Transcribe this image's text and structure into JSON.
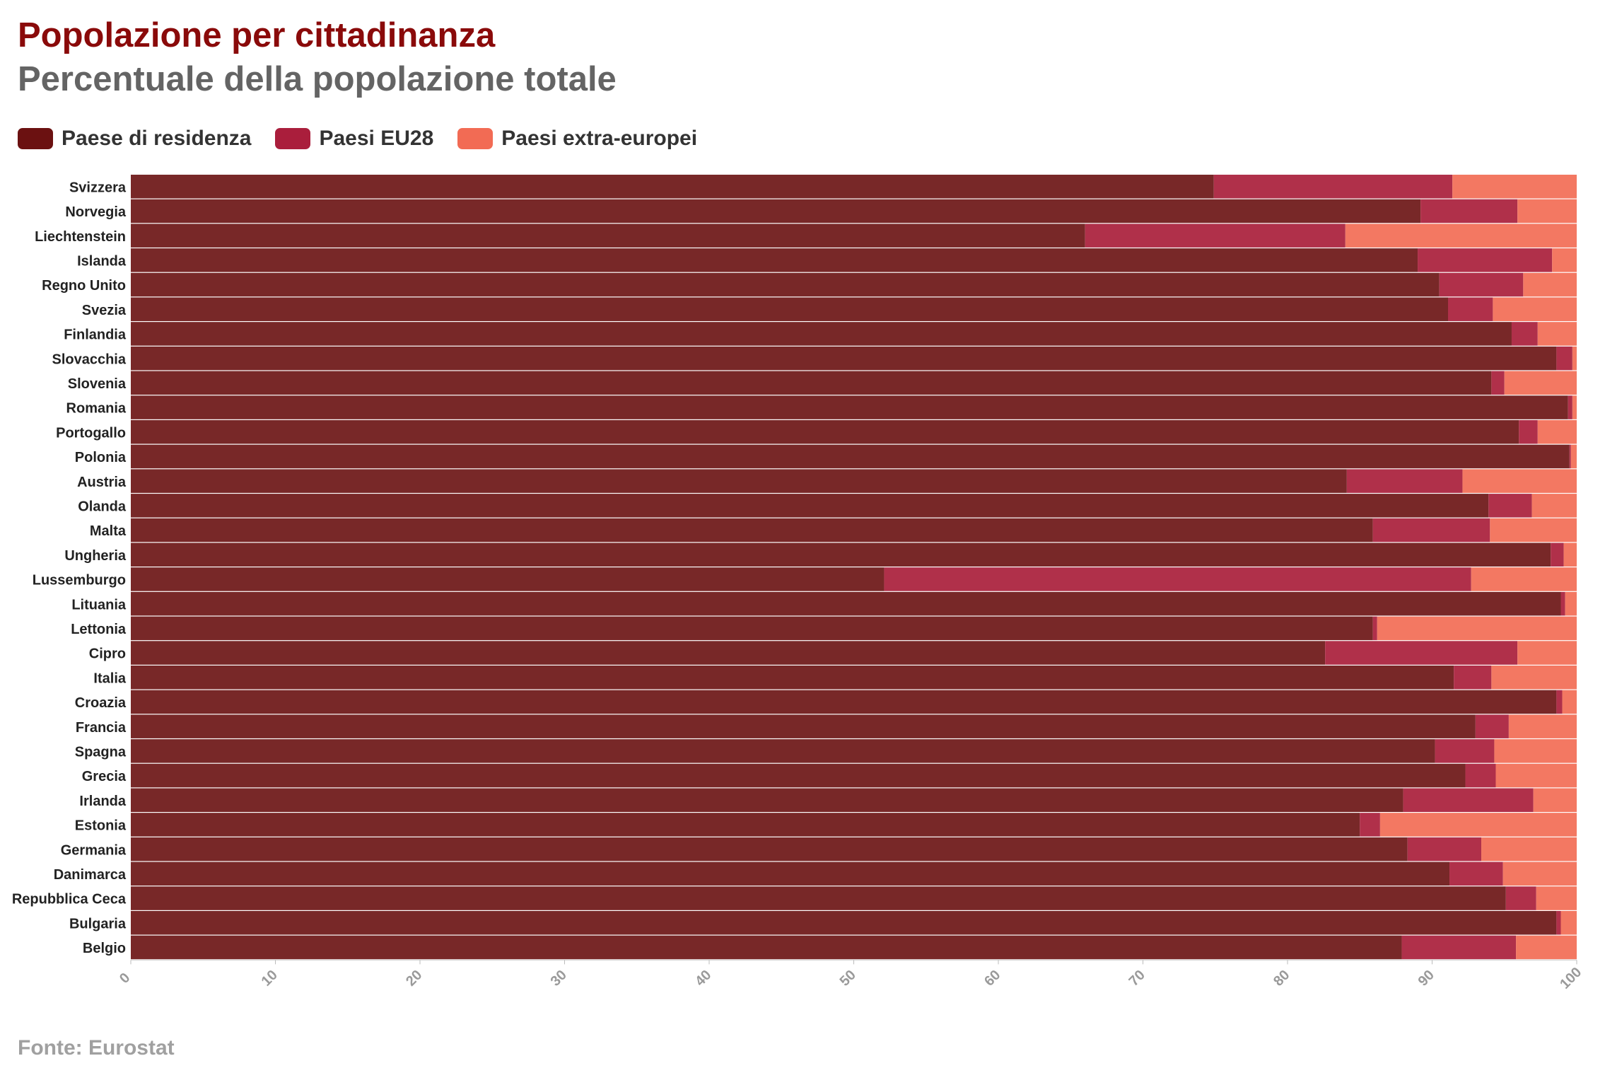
{
  "colors": {
    "title": "#8a0a0a",
    "subtitle": "#646464",
    "resid": "#782828",
    "eu": "#b0304a",
    "extra": "#f37862",
    "resid_swatch": "#6b1111",
    "eu_swatch": "#aa1e3c",
    "extra_swatch": "#f26b54"
  },
  "legend": [
    {
      "label": "Paese di residenza",
      "color": "#6b1111"
    },
    {
      "label": "Paesi EU28",
      "color": "#aa1e3c"
    },
    {
      "label": "Paesi extra-europei",
      "color": "#f26b54"
    }
  ],
  "source": "Fonte: Eurostat",
  "chart_data": {
    "type": "bar",
    "orientation": "horizontal",
    "stacked": true,
    "title": "Popolazione per cittadinanza",
    "subtitle": "Percentuale della popolazione totale",
    "xlim": [
      0,
      100
    ],
    "x_ticks": [
      "0",
      "10",
      "20",
      "30",
      "40",
      "50",
      "60",
      "70",
      "80",
      "90",
      "100"
    ],
    "legend_position": "top-left",
    "grid": false,
    "categories": [
      "Svizzera",
      "Norvegia",
      "Liechtenstein",
      "Islanda",
      "Regno Unito",
      "Svezia",
      "Finlandia",
      "Slovacchia",
      "Slovenia",
      "Romania",
      "Portogallo",
      "Polonia",
      "Austria",
      "Olanda",
      "Malta",
      "Ungheria",
      "Lussemburgo",
      "Lituania",
      "Lettonia",
      "Cipro",
      "Italia",
      "Croazia",
      "Francia",
      "Spagna",
      "Grecia",
      "Irlanda",
      "Estonia",
      "Germania",
      "Danimarca",
      "Repubblica Ceca",
      "Bulgaria",
      "Belgio"
    ],
    "series": [
      {
        "name": "Paese di residenza",
        "values": [
          74.9,
          89.2,
          66.0,
          89.0,
          90.5,
          91.1,
          95.5,
          98.6,
          94.1,
          99.4,
          96.0,
          99.5,
          84.1,
          93.9,
          85.9,
          98.2,
          52.1,
          98.9,
          85.9,
          82.6,
          91.5,
          98.6,
          93.0,
          90.2,
          92.3,
          88.0,
          85.0,
          88.3,
          91.2,
          95.1,
          98.6,
          87.9
        ]
      },
      {
        "name": "Paesi EU28",
        "values": [
          16.5,
          6.7,
          18.0,
          9.3,
          5.8,
          3.1,
          1.8,
          1.1,
          0.9,
          0.3,
          1.3,
          0.1,
          8.0,
          3.0,
          8.1,
          0.9,
          40.6,
          0.3,
          0.3,
          13.3,
          2.6,
          0.4,
          2.3,
          4.1,
          2.1,
          9.0,
          1.4,
          5.1,
          3.7,
          2.1,
          0.3,
          7.9
        ]
      },
      {
        "name": "Paesi extra-europei",
        "values": [
          8.6,
          4.1,
          16.0,
          1.7,
          3.7,
          5.8,
          2.7,
          0.3,
          5.0,
          0.3,
          2.7,
          0.4,
          7.9,
          3.1,
          6.0,
          0.9,
          7.3,
          0.8,
          13.8,
          4.1,
          5.9,
          1.0,
          4.7,
          5.7,
          5.6,
          3.0,
          13.6,
          6.6,
          5.1,
          2.8,
          1.1,
          4.2
        ]
      }
    ]
  }
}
